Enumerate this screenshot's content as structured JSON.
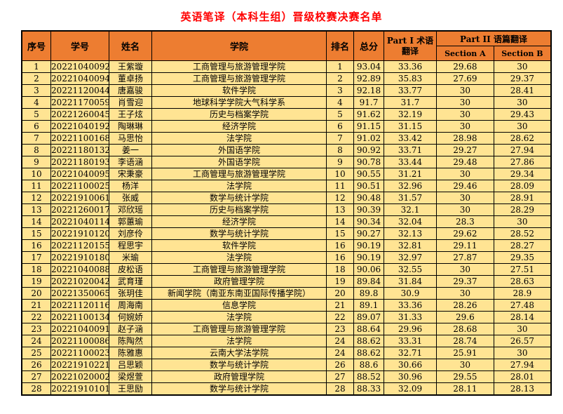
{
  "title": "英语笔译（本科生组）晋级校赛决赛名单",
  "colors": {
    "title_color": "#FF0000",
    "header_bg": "#ED7D31",
    "row_bg": "#FFE493",
    "border": "#000000"
  },
  "table": {
    "headers": {
      "index": "序号",
      "student_id": "学号",
      "name": "姓名",
      "college": "学院",
      "rank": "排名",
      "total": "总分",
      "part1": "Part I 术语翻译",
      "part2": "Part II 语篇翻译",
      "section_a": "Section A",
      "section_b": "Section B"
    },
    "rows": [
      [
        "1",
        "20221040092",
        "王紫璇",
        "工商管理与旅游管理学院",
        "1",
        "93.04",
        "33.36",
        "29.68",
        "30"
      ],
      [
        "2",
        "20221040094",
        "董卓扬",
        "工商管理与旅游管理学院",
        "2",
        "92.89",
        "35.83",
        "27.69",
        "29.37"
      ],
      [
        "3",
        "20221120044",
        "唐嘉骏",
        "软件学院",
        "3",
        "92.18",
        "33.77",
        "30",
        "28.41"
      ],
      [
        "4",
        "20221170059",
        "肖雪迎",
        "地球科学学院大气科学系",
        "4",
        "91.7",
        "31.7",
        "30",
        "30"
      ],
      [
        "5",
        "20221260045",
        "王子炫",
        "历史与档案学院",
        "5",
        "91.62",
        "32.19",
        "30",
        "29.43"
      ],
      [
        "6",
        "20221040192",
        "陶琳琳",
        "经济学院",
        "6",
        "91.15",
        "31.15",
        "30",
        "30"
      ],
      [
        "7",
        "20221100168",
        "马思怡",
        "法学院",
        "7",
        "91.02",
        "33.42",
        "28.98",
        "28.62"
      ],
      [
        "8",
        "20221180132",
        "姜一",
        "外国语学院",
        "8",
        "90.92",
        "33.71",
        "29.27",
        "27.94"
      ],
      [
        "9",
        "20221180193",
        "李语涵",
        "外国语学院",
        "9",
        "90.78",
        "33.44",
        "29.48",
        "27.86"
      ],
      [
        "10",
        "20221040095",
        "宋秉豪",
        "工商管理与旅游管理学院",
        "10",
        "90.55",
        "31.21",
        "30",
        "29.34"
      ],
      [
        "11",
        "20221100025",
        "杨洋",
        "法学院",
        "11",
        "90.51",
        "32.96",
        "29.46",
        "28.09"
      ],
      [
        "12",
        "20221910061",
        "张威",
        "数学与统计学院",
        "12",
        "90.48",
        "31.57",
        "30",
        "28.91"
      ],
      [
        "13",
        "20221260017",
        "邓欣瑶",
        "历史与档案学院",
        "13",
        "90.39",
        "32.1",
        "30",
        "28.29"
      ],
      [
        "14",
        "20221040114",
        "郭蕙瑜",
        "经济学院",
        "14",
        "90.34",
        "32.04",
        "28.3",
        "30"
      ],
      [
        "15",
        "20221910120",
        "刘彦伶",
        "数学与统计学院",
        "15",
        "90.27",
        "32.13",
        "29.62",
        "28.52"
      ],
      [
        "16",
        "20221120155",
        "程思宇",
        "软件学院",
        "16",
        "90.19",
        "32.81",
        "29.11",
        "28.27"
      ],
      [
        "17",
        "20221910180",
        "米瑜",
        "法学院",
        "16",
        "90.19",
        "32.97",
        "27.87",
        "29.35"
      ],
      [
        "18",
        "20221040088",
        "皮松语",
        "工商管理与旅游管理学院",
        "18",
        "90.06",
        "32.55",
        "30",
        "27.51"
      ],
      [
        "19",
        "20221020042",
        "武育瑾",
        "政府管理学院",
        "19",
        "89.84",
        "31.84",
        "29.37",
        "28.63"
      ],
      [
        "20",
        "20221350065",
        "张玥佳",
        "新闻学院（南亚东南亚国际传播学院）",
        "20",
        "89.8",
        "30.9",
        "30",
        "28.9"
      ],
      [
        "21",
        "20221120116",
        "周海南",
        "信息学院",
        "21",
        "89.1",
        "33.36",
        "28.26",
        "27.48"
      ],
      [
        "22",
        "20221100134",
        "何婉娇",
        "法学院",
        "22",
        "89.07",
        "31.33",
        "29.6",
        "28.14"
      ],
      [
        "23",
        "20221040091",
        "赵子涵",
        "工商管理与旅游管理学院",
        "23",
        "88.64",
        "29.96",
        "28.68",
        "30"
      ],
      [
        "24",
        "20221100086",
        "陈陶然",
        "法学院",
        "24",
        "88.62",
        "33.31",
        "28.74",
        "26.57"
      ],
      [
        "25",
        "20221100023",
        "陈雅惠",
        "云南大学法学院",
        "24",
        "88.62",
        "32.71",
        "25.91",
        "30"
      ],
      [
        "26",
        "20221910221",
        "吕思颖",
        "数学与统计学院",
        "26",
        "88.6",
        "30.66",
        "30",
        "27.94"
      ],
      [
        "27",
        "20221020002",
        "梁煜萱",
        "政府管理学院",
        "27",
        "88.52",
        "30.96",
        "29.55",
        "28.01"
      ],
      [
        "28",
        "20221910101",
        "王思励",
        "数学与统计学院",
        "28",
        "88.33",
        "32.09",
        "28.11",
        "28.13"
      ]
    ]
  }
}
